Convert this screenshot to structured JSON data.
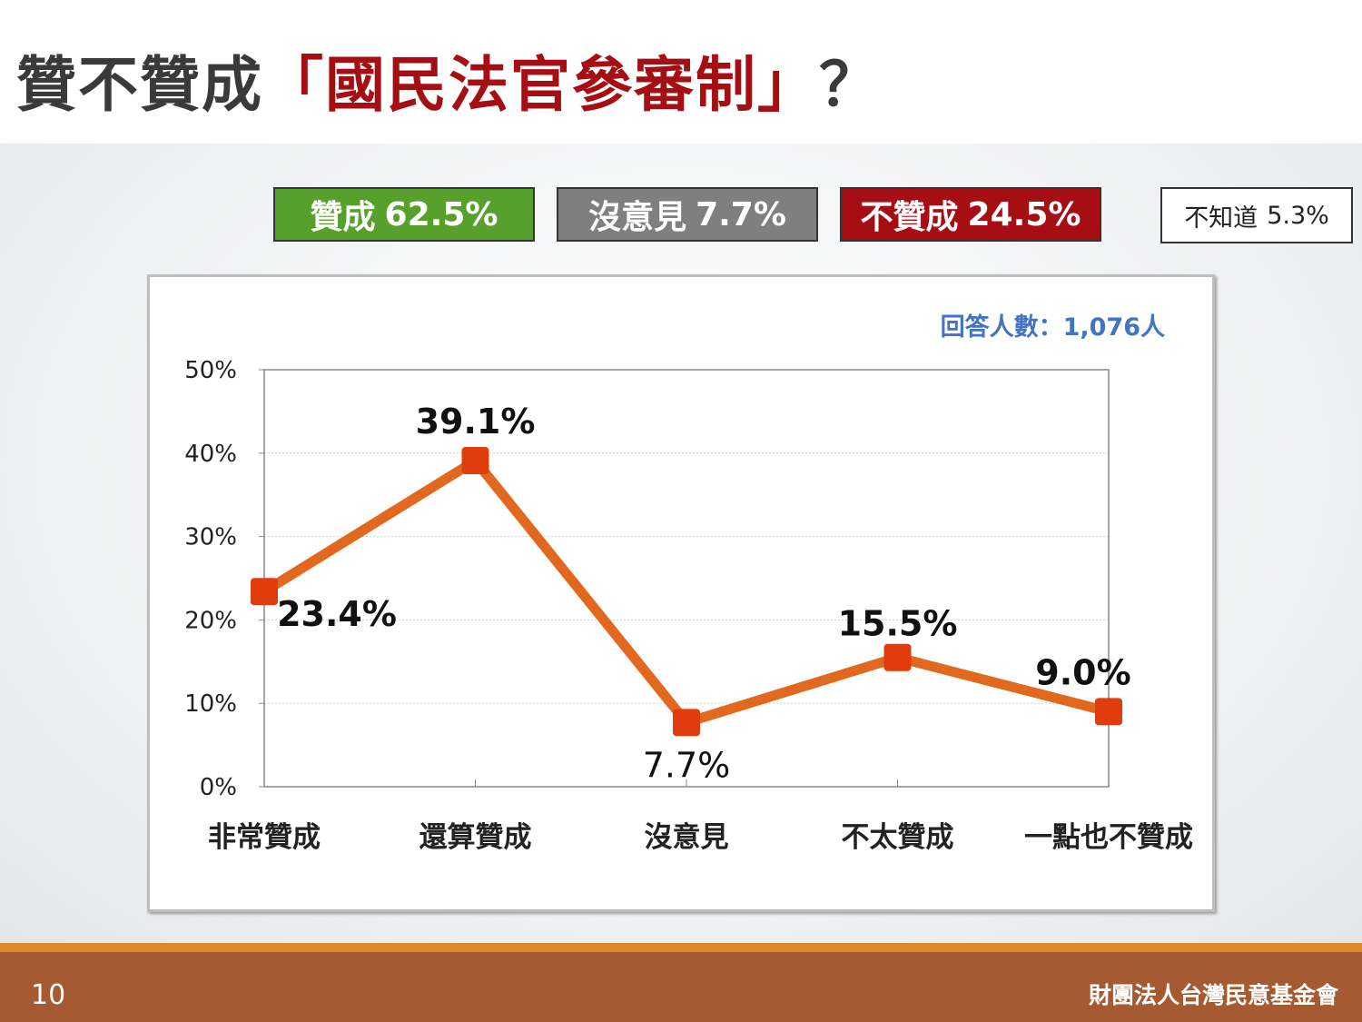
{
  "title": {
    "prefix": "贊不贊成",
    "highlight": "「國民法官參審制」",
    "suffix": "？"
  },
  "summary": {
    "approve": {
      "label": "贊成",
      "value": "62.5%",
      "color": "#57a02b"
    },
    "neutral": {
      "label": "沒意見",
      "value": "7.7%",
      "color": "#7f7f7f"
    },
    "oppose": {
      "label": "不贊成",
      "value": "24.5%",
      "color": "#a50f14"
    },
    "unknown": {
      "label": "不知道",
      "value": "5.3%"
    }
  },
  "chart_data": {
    "type": "line",
    "note": "回答人數：1,076人",
    "categories": [
      "非常贊成",
      "還算贊成",
      "沒意見",
      "不太贊成",
      "一點也不贊成"
    ],
    "values": [
      23.4,
      39.1,
      7.7,
      15.5,
      9.0
    ],
    "data_labels": [
      "23.4%",
      "39.1%",
      "7.7%",
      "15.5%",
      "9.0%"
    ],
    "ylim": [
      0,
      50
    ],
    "yticks": [
      "0%",
      "10%",
      "20%",
      "30%",
      "40%",
      "50%"
    ],
    "xlabel": "",
    "ylabel": "",
    "grid": true,
    "line_color": "#e2681f",
    "marker_color": "#e03c0c"
  },
  "footer": {
    "page_number": "10",
    "organization": "財團法人台灣民意基金會"
  }
}
